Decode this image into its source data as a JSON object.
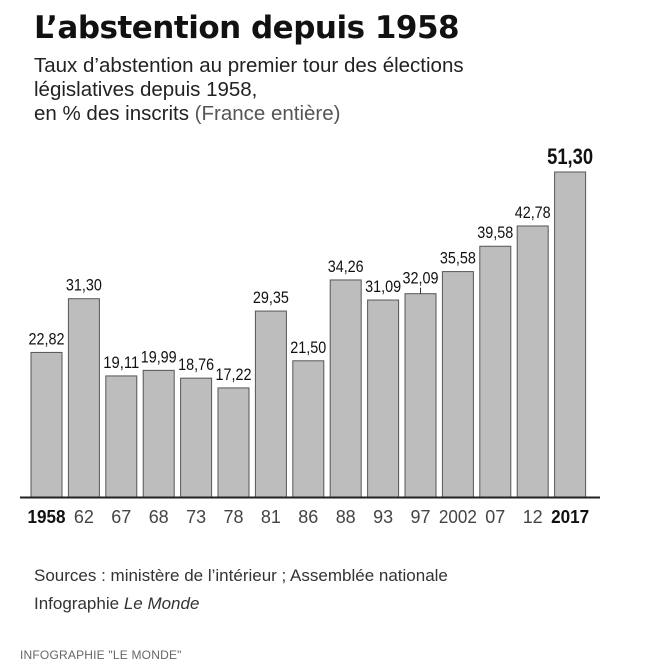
{
  "title": "L’abstention depuis 1958",
  "subtitle_line1": "Taux d’abstention au premier tour des élections",
  "subtitle_line2": "législatives depuis 1958,",
  "subtitle_line3_main": "en % des inscrits",
  "subtitle_line3_note": "(France entière)",
  "sources_line": "Sources : ministère de l’intérieur ; Assemblée nationale",
  "infographie_prefix": "Infographie",
  "infographie_name": "Le Monde",
  "credit": "INFOGRAPHIE \"LE MONDE\"",
  "chart_data": {
    "type": "bar",
    "categories": [
      "1958",
      "62",
      "67",
      "68",
      "73",
      "78",
      "81",
      "86",
      "88",
      "93",
      "97",
      "2002",
      "07",
      "12",
      "2017"
    ],
    "values": [
      22.82,
      31.3,
      19.11,
      19.99,
      18.76,
      17.22,
      29.35,
      21.5,
      34.26,
      31.09,
      32.09,
      35.58,
      39.58,
      42.78,
      51.3
    ],
    "value_labels": [
      "22,82",
      "31,30",
      "19,11",
      "19,99",
      "18,76",
      "17,22",
      "29,35",
      "21,50",
      "34,26",
      "31,09",
      "32,09",
      "35,58",
      "39,58",
      "42,78",
      "51,30"
    ],
    "bold_categories": [
      "1958",
      "2017"
    ],
    "highlight_value_index": 14,
    "ylim": [
      0,
      51.3
    ],
    "bar_color": "#bdbdbd",
    "bar_stroke": "#555555",
    "axis_color": "#222222"
  }
}
